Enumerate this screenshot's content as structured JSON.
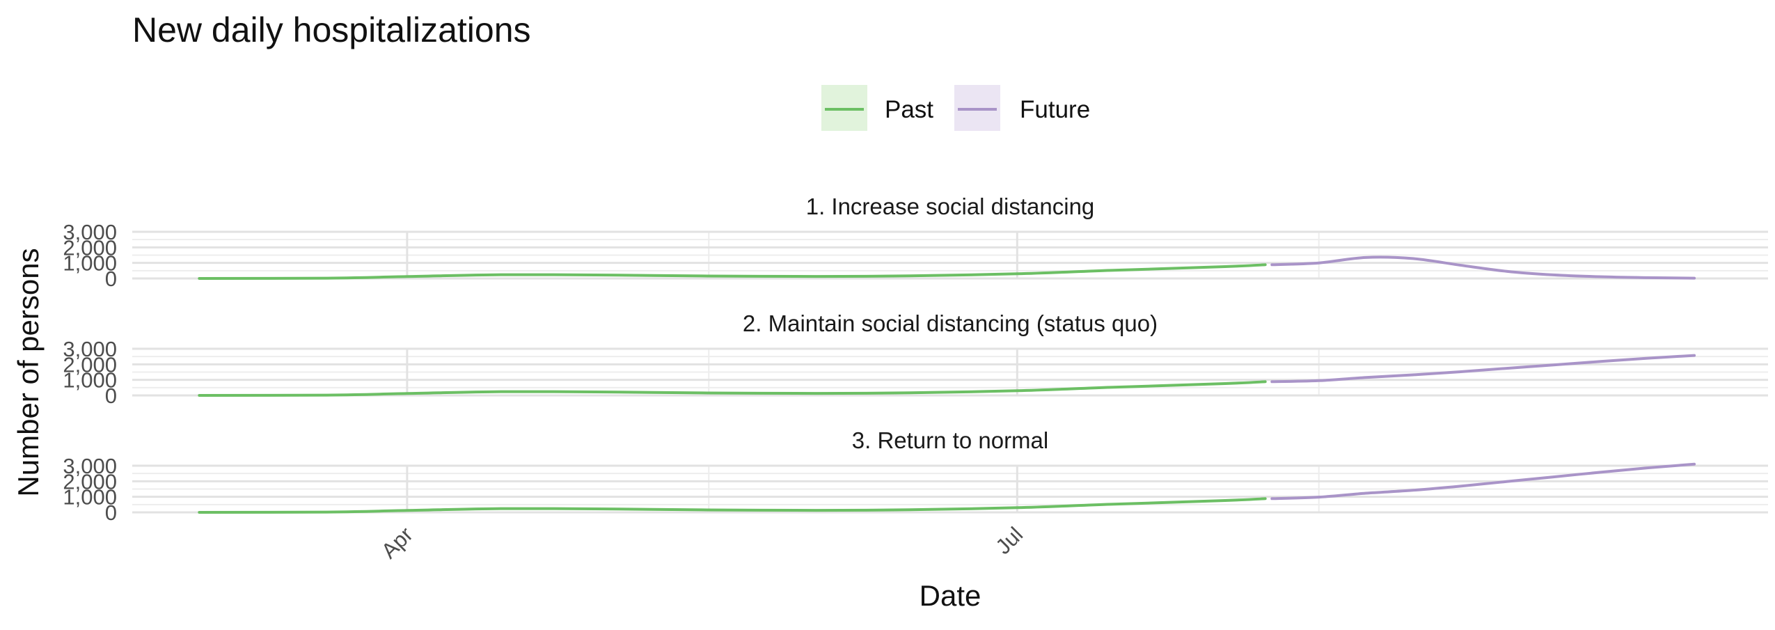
{
  "chart_data": {
    "type": "line",
    "title": "New daily hospitalizations",
    "xlabel": "Date",
    "ylabel": "Number of persons",
    "x_tick_labels": [
      "Apr",
      "Jul"
    ],
    "y_tick_labels": [
      "0",
      "1,000",
      "2,000",
      "3,000"
    ],
    "ylim": [
      0,
      3000
    ],
    "grid": true,
    "legend_position": "top",
    "legend": [
      {
        "name": "Past",
        "color": "#6cbf64",
        "key_fill": "#e1f3dc"
      },
      {
        "name": "Future",
        "color": "#a994c8",
        "key_fill": "#ebe5f3"
      }
    ],
    "panels": [
      {
        "label": "1. Increase social distancing",
        "series": [
          {
            "name": "Past",
            "x": [
              "2020-03-01",
              "2020-03-20",
              "2020-04-01",
              "2020-04-15",
              "2020-05-01",
              "2020-05-15",
              "2020-06-01",
              "2020-06-15",
              "2020-07-01",
              "2020-07-15",
              "2020-08-01",
              "2020-08-07"
            ],
            "values": [
              0,
              20,
              120,
              240,
              220,
              160,
              130,
              170,
              300,
              520,
              760,
              880
            ]
          },
          {
            "name": "Future",
            "x": [
              "2020-08-08",
              "2020-08-15",
              "2020-08-22",
              "2020-08-29",
              "2020-09-05",
              "2020-09-12",
              "2020-09-19",
              "2020-09-26",
              "2020-10-03",
              "2020-10-10"
            ],
            "values": [
              880,
              1000,
              1350,
              1280,
              860,
              460,
              230,
              110,
              50,
              20
            ]
          }
        ]
      },
      {
        "label": "2. Maintain social distancing (status quo)",
        "series": [
          {
            "name": "Past",
            "x": [
              "2020-03-01",
              "2020-03-20",
              "2020-04-01",
              "2020-04-15",
              "2020-05-01",
              "2020-05-15",
              "2020-06-01",
              "2020-06-15",
              "2020-07-01",
              "2020-07-15",
              "2020-08-01",
              "2020-08-07"
            ],
            "values": [
              0,
              20,
              120,
              240,
              220,
              160,
              130,
              170,
              300,
              520,
              760,
              880
            ]
          },
          {
            "name": "Future",
            "x": [
              "2020-08-08",
              "2020-08-15",
              "2020-08-22",
              "2020-08-29",
              "2020-09-05",
              "2020-09-12",
              "2020-09-19",
              "2020-09-26",
              "2020-10-03",
              "2020-10-10"
            ],
            "values": [
              880,
              950,
              1150,
              1320,
              1520,
              1740,
              1960,
              2180,
              2390,
              2570
            ]
          }
        ]
      },
      {
        "label": "3. Return to normal",
        "series": [
          {
            "name": "Past",
            "x": [
              "2020-03-01",
              "2020-03-20",
              "2020-04-01",
              "2020-04-15",
              "2020-05-01",
              "2020-05-15",
              "2020-06-01",
              "2020-06-15",
              "2020-07-01",
              "2020-07-15",
              "2020-08-01",
              "2020-08-07"
            ],
            "values": [
              0,
              20,
              120,
              240,
              220,
              160,
              130,
              170,
              300,
              520,
              760,
              880
            ]
          },
          {
            "name": "Future",
            "x": [
              "2020-08-08",
              "2020-08-15",
              "2020-08-22",
              "2020-08-29",
              "2020-09-05",
              "2020-09-12",
              "2020-09-19",
              "2020-09-26",
              "2020-10-03",
              "2020-10-10"
            ],
            "values": [
              880,
              980,
              1230,
              1420,
              1680,
              1980,
              2280,
              2580,
              2860,
              3100
            ]
          }
        ]
      }
    ]
  }
}
